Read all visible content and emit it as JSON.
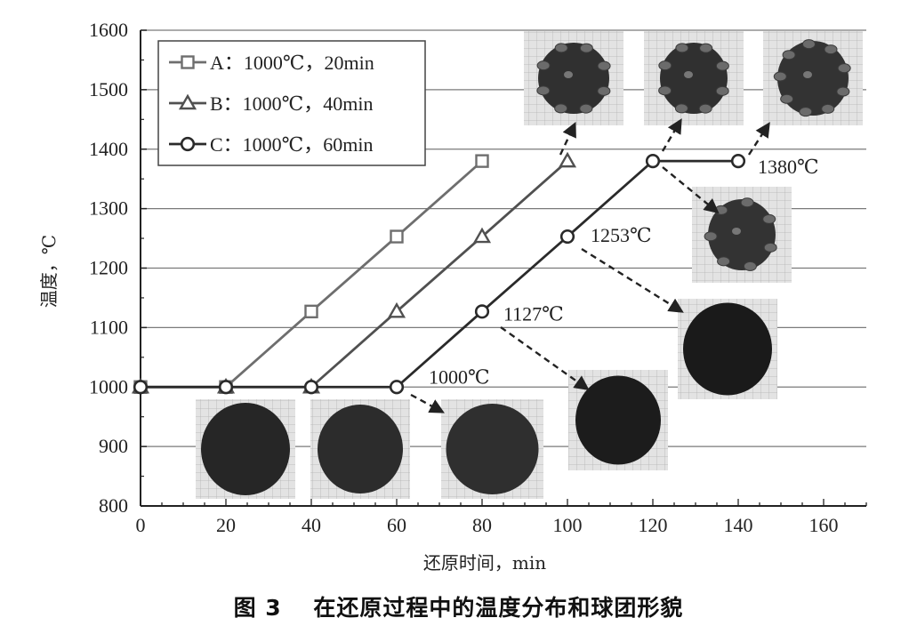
{
  "caption": "图 3　 在还原过程中的温度分布和球团形貌",
  "chart_data": {
    "type": "line",
    "xlabel": "还原时间，min",
    "ylabel": "温度，℃",
    "xlim": [
      0,
      170
    ],
    "ylim": [
      800,
      1600
    ],
    "xticks": [
      0,
      20,
      40,
      60,
      80,
      100,
      120,
      140,
      160
    ],
    "yticks": [
      800,
      900,
      1000,
      1100,
      1200,
      1300,
      1400,
      1500,
      1600
    ],
    "grid": "horizontal",
    "legend_position": "top-left",
    "series": [
      {
        "name": "A：1000℃，20min",
        "marker": "square",
        "color": "#6e6e6e",
        "x": [
          0,
          20,
          40,
          60,
          80,
          100,
          120,
          140
        ],
        "y": [
          1000,
          1000,
          1127,
          1253,
          1380,
          1380,
          1380,
          1380
        ]
      },
      {
        "name": "B：1000℃，40min",
        "marker": "triangle",
        "color": "#505050",
        "x": [
          0,
          20,
          40,
          60,
          80,
          100,
          120,
          140
        ],
        "y": [
          1000,
          1000,
          1000,
          1127,
          1253,
          1380,
          1380,
          1380
        ]
      },
      {
        "name": "C：1000℃，60min",
        "marker": "circle",
        "color": "#2a2a2a",
        "x": [
          0,
          20,
          40,
          60,
          80,
          100,
          120,
          140
        ],
        "y": [
          1000,
          1000,
          1000,
          1000,
          1127,
          1253,
          1380,
          1380
        ]
      }
    ],
    "annotations": [
      {
        "text": "1000℃",
        "x": 60,
        "y": 1000
      },
      {
        "text": "1127℃",
        "x": 80,
        "y": 1127
      },
      {
        "text": "1253℃",
        "x": 100,
        "y": 1253
      },
      {
        "text": "1380℃",
        "x": 140,
        "y": 1380
      }
    ]
  }
}
